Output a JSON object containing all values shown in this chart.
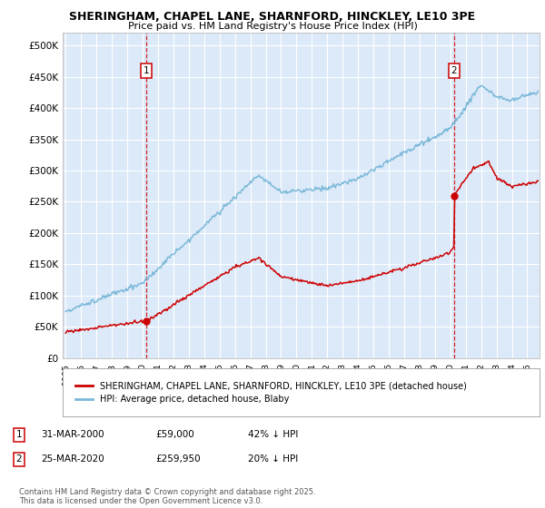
{
  "title": "SHERINGHAM, CHAPEL LANE, SHARNFORD, HINCKLEY, LE10 3PE",
  "subtitle": "Price paid vs. HM Land Registry's House Price Index (HPI)",
  "ylabel_ticks": [
    "£0",
    "£50K",
    "£100K",
    "£150K",
    "£200K",
    "£250K",
    "£300K",
    "£350K",
    "£400K",
    "£450K",
    "£500K"
  ],
  "ytick_values": [
    0,
    50000,
    100000,
    150000,
    200000,
    250000,
    300000,
    350000,
    400000,
    450000,
    500000
  ],
  "ylim": [
    0,
    520000
  ],
  "xlim_start": 1994.8,
  "xlim_end": 2025.8,
  "bg_color": "#dce9f5",
  "plot_bg": "#dce9f8",
  "hpi_color": "#7ab8d9",
  "price_color": "#cc0000",
  "marker1_x": 2000.24,
  "marker1_y": 59000,
  "marker2_x": 2020.24,
  "marker2_y": 259950,
  "legend_label1": "SHERINGHAM, CHAPEL LANE, SHARNFORD, HINCKLEY, LE10 3PE (detached house)",
  "legend_label2": "HPI: Average price, detached house, Blaby",
  "footer": "Contains HM Land Registry data © Crown copyright and database right 2025.\nThis data is licensed under the Open Government Licence v3.0.",
  "table_rows": [
    {
      "num": "1",
      "date": "31-MAR-2000",
      "price": "£59,000",
      "note": "42% ↓ HPI"
    },
    {
      "num": "2",
      "date": "25-MAR-2020",
      "price": "£259,950",
      "note": "20% ↓ HPI"
    }
  ]
}
